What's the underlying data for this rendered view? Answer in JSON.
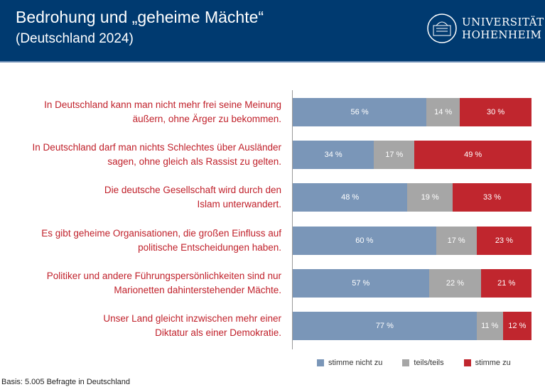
{
  "header": {
    "title": "Bedrohung und „geheime Mächte“",
    "subtitle": "(Deutschland 2024)",
    "logo_line1": "UNIVERSITÄT",
    "logo_line2": "HOHENHEIM"
  },
  "colors": {
    "header": "#003a70",
    "disagree": "#7a96b8",
    "neutral": "#a6a6a6",
    "agree": "#c0262e",
    "label": "#c0202a"
  },
  "chart_data": {
    "type": "bar",
    "stacked": true,
    "orientation": "horizontal",
    "xlim": [
      0,
      100
    ],
    "categories": [
      [
        "In Deutschland kann man nicht mehr frei seine Meinung",
        "äußern, ohne Ärger zu bekommen."
      ],
      [
        "In Deutschland darf man nichts Schlechtes über Ausländer",
        "sagen, ohne gleich als Rassist zu gelten."
      ],
      [
        "Die deutsche Gesellschaft wird durch den",
        "Islam unterwandert."
      ],
      [
        "Es gibt geheime Organisationen, die großen Einfluss auf",
        "politische Entscheidungen haben."
      ],
      [
        "Politiker und andere Führungspersönlichkeiten sind nur",
        "Marionetten dahinterstehender Mächte."
      ],
      [
        "Unser Land gleicht inzwischen mehr einer",
        "Diktatur als einer Demokratie."
      ]
    ],
    "series": [
      {
        "name": "stimme nicht zu",
        "values": [
          56,
          34,
          48,
          60,
          57,
          77
        ]
      },
      {
        "name": "teils/teils",
        "values": [
          14,
          17,
          19,
          17,
          22,
          11
        ]
      },
      {
        "name": "stimme zu",
        "values": [
          30,
          49,
          33,
          23,
          21,
          12
        ]
      }
    ],
    "legend": "bottom",
    "unit": " %"
  },
  "footer": {
    "basis": "Basis: 5.005 Befragte in Deutschland"
  }
}
